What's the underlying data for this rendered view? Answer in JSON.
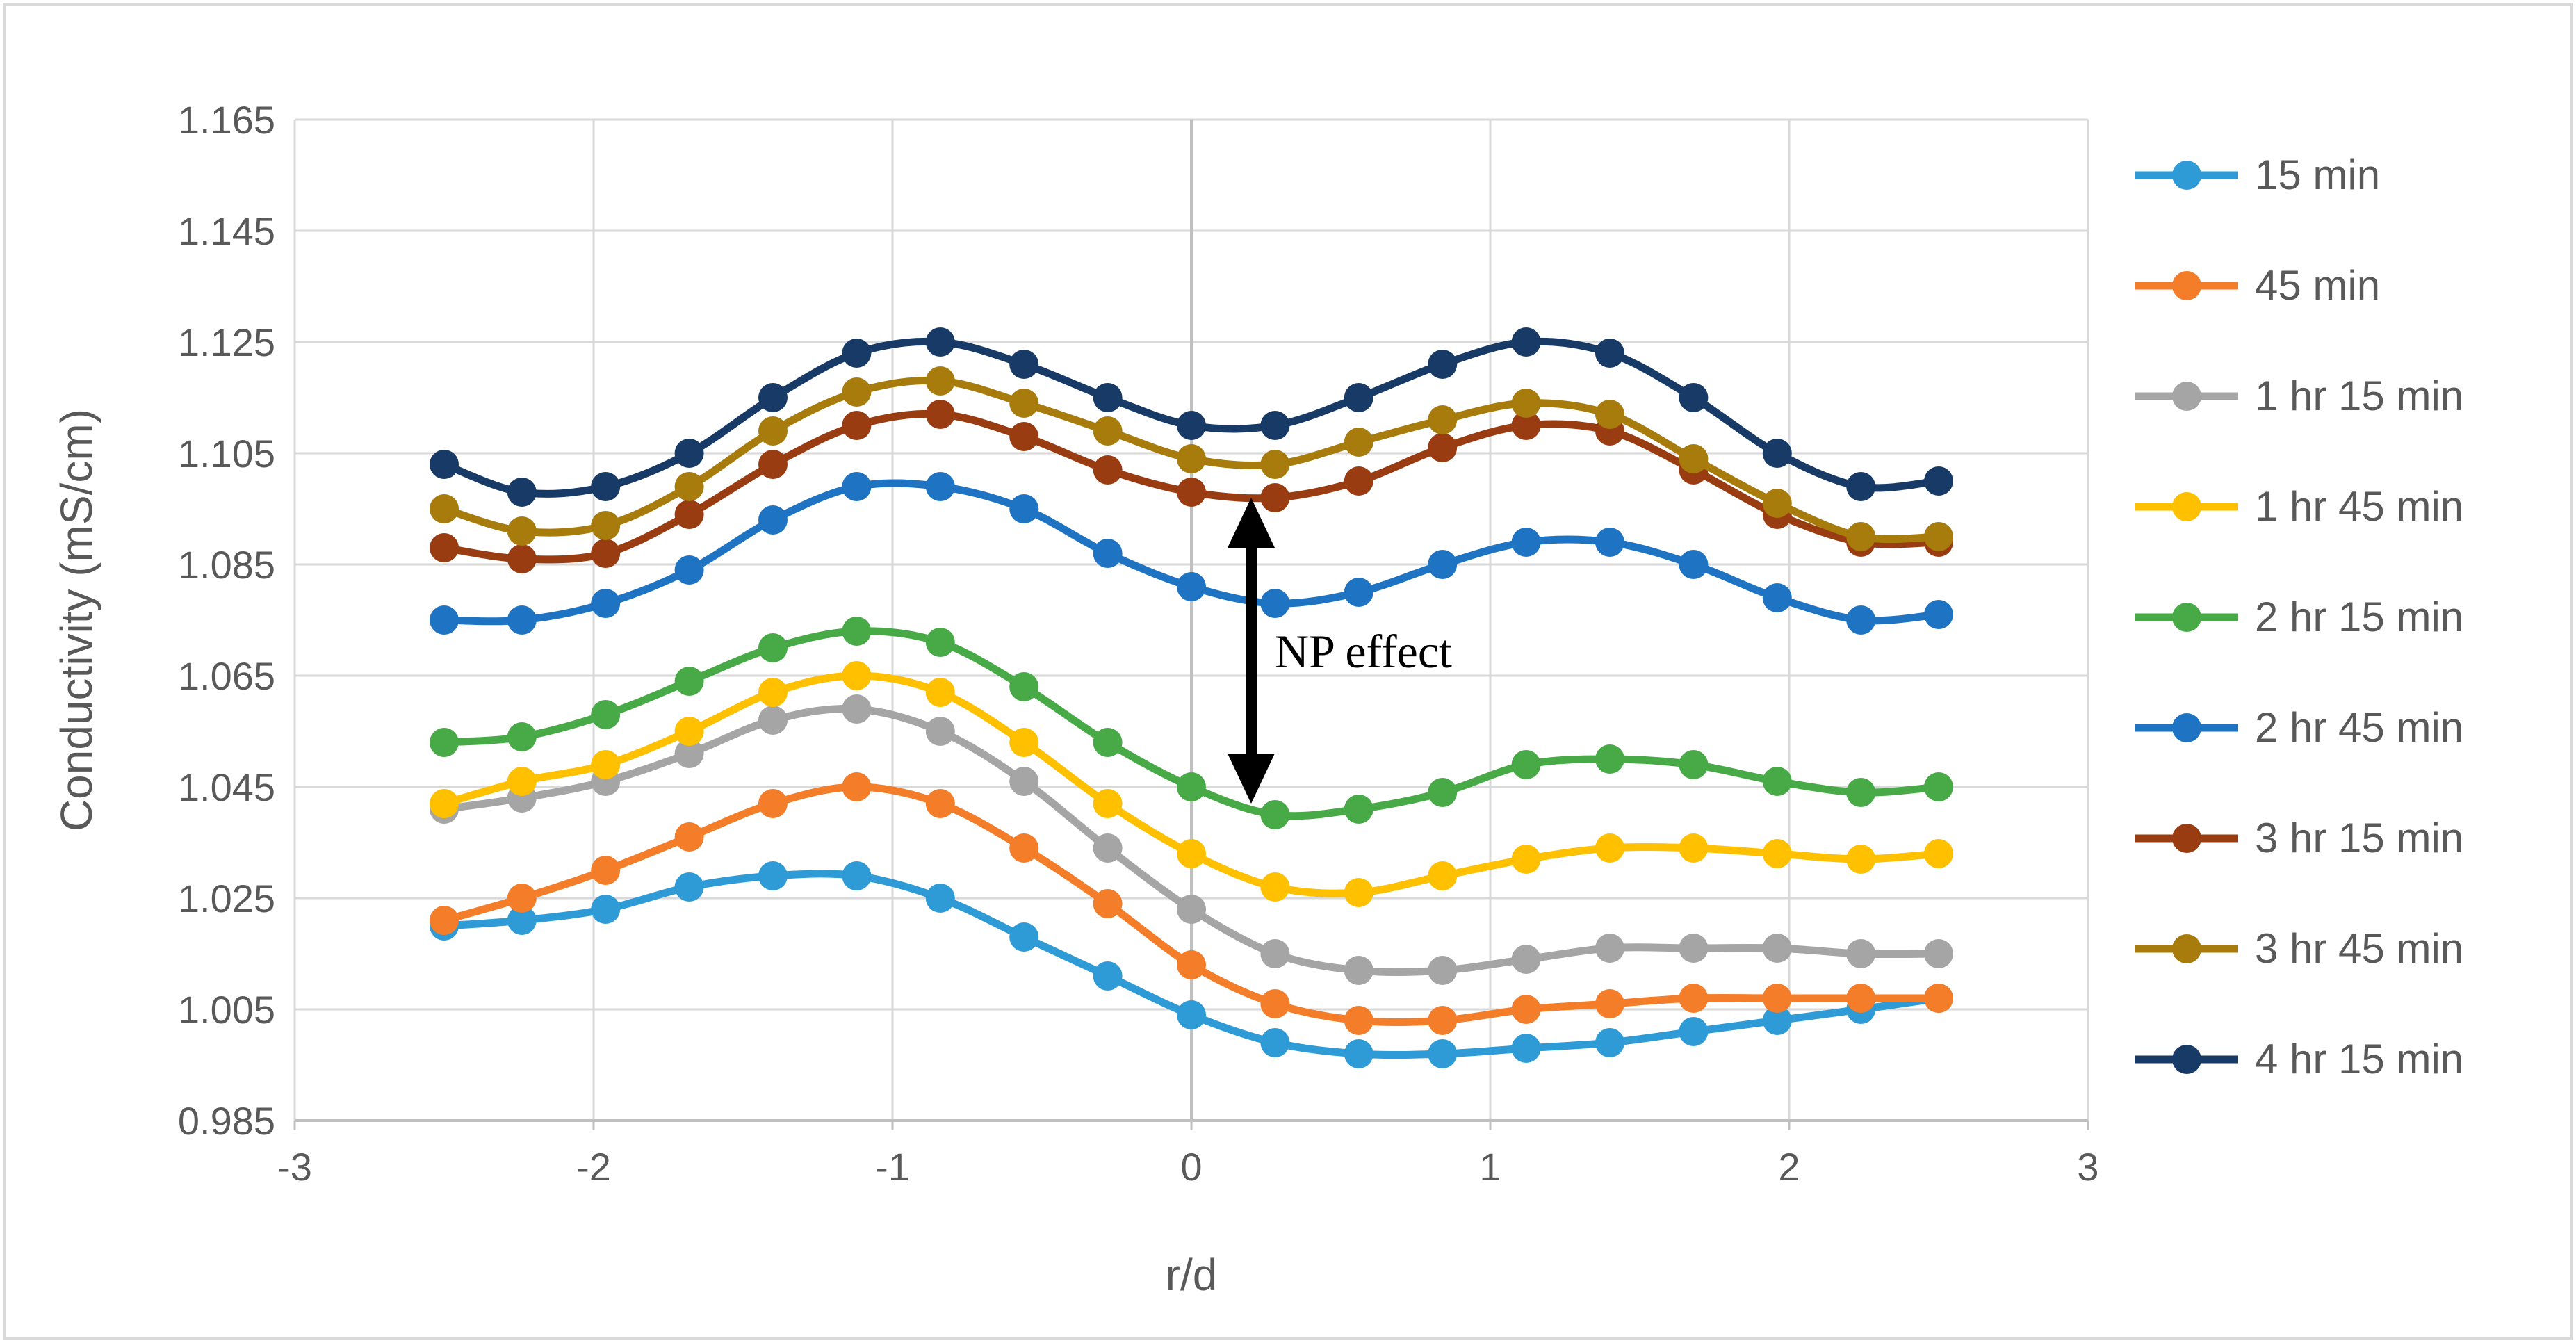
{
  "chart_data": {
    "type": "line",
    "title": "",
    "xlabel": "r/d",
    "ylabel": "Conductivity (mS/cm)",
    "xlim": [
      -3,
      3
    ],
    "ylim": [
      0.985,
      1.165
    ],
    "xticks": [
      -3,
      -2,
      -1,
      0,
      1,
      2,
      3
    ],
    "xtick_labels": [
      "-3",
      "-2",
      "-1",
      "0",
      "1",
      "2",
      "3"
    ],
    "yticks": [
      0.985,
      1.005,
      1.025,
      1.045,
      1.065,
      1.085,
      1.105,
      1.125,
      1.145,
      1.165
    ],
    "ytick_labels": [
      "0.985",
      "1.005",
      "1.025",
      "1.045",
      "1.065",
      "1.085",
      "1.105",
      "1.125",
      "1.145",
      "1.165"
    ],
    "grid": true,
    "legend_position": "right",
    "x": [
      -2.5,
      -2.24,
      -1.96,
      -1.68,
      -1.4,
      -1.12,
      -0.84,
      -0.56,
      -0.28,
      0,
      0.28,
      0.56,
      0.84,
      1.12,
      1.4,
      1.68,
      1.96,
      2.24,
      2.5
    ],
    "series": [
      {
        "name": "15 min",
        "color": "#2E9BD6",
        "values": [
          1.02,
          1.021,
          1.023,
          1.027,
          1.029,
          1.029,
          1.025,
          1.018,
          1.011,
          1.004,
          0.999,
          0.997,
          0.997,
          0.998,
          0.999,
          1.001,
          1.003,
          1.005,
          1.007
        ]
      },
      {
        "name": "45 min",
        "color": "#F47D2A",
        "values": [
          1.021,
          1.025,
          1.03,
          1.036,
          1.042,
          1.045,
          1.042,
          1.034,
          1.024,
          1.013,
          1.006,
          1.003,
          1.003,
          1.005,
          1.006,
          1.007,
          1.007,
          1.007,
          1.007
        ]
      },
      {
        "name": "1 hr 15 min",
        "color": "#A5A5A5",
        "values": [
          1.041,
          1.043,
          1.046,
          1.051,
          1.057,
          1.059,
          1.055,
          1.046,
          1.034,
          1.023,
          1.015,
          1.012,
          1.012,
          1.014,
          1.016,
          1.016,
          1.016,
          1.015,
          1.015
        ]
      },
      {
        "name": "1 hr 45 min",
        "color": "#FFC000",
        "values": [
          1.042,
          1.046,
          1.049,
          1.055,
          1.062,
          1.065,
          1.062,
          1.053,
          1.042,
          1.033,
          1.027,
          1.026,
          1.029,
          1.032,
          1.034,
          1.034,
          1.033,
          1.032,
          1.033
        ]
      },
      {
        "name": "2 hr 15 min",
        "color": "#48AA47",
        "values": [
          1.053,
          1.054,
          1.058,
          1.064,
          1.07,
          1.073,
          1.071,
          1.063,
          1.053,
          1.045,
          1.04,
          1.041,
          1.044,
          1.049,
          1.05,
          1.049,
          1.046,
          1.044,
          1.045
        ]
      },
      {
        "name": "2 hr 45 min",
        "color": "#1E74C3",
        "values": [
          1.075,
          1.075,
          1.078,
          1.084,
          1.093,
          1.099,
          1.099,
          1.095,
          1.087,
          1.081,
          1.078,
          1.08,
          1.085,
          1.089,
          1.089,
          1.085,
          1.079,
          1.075,
          1.076
        ]
      },
      {
        "name": "3 hr 15 min",
        "color": "#9A3C12",
        "values": [
          1.088,
          1.086,
          1.087,
          1.094,
          1.103,
          1.11,
          1.112,
          1.108,
          1.102,
          1.098,
          1.097,
          1.1,
          1.106,
          1.11,
          1.109,
          1.102,
          1.094,
          1.089,
          1.089
        ]
      },
      {
        "name": "3 hr 45 min",
        "color": "#A77B0C",
        "values": [
          1.095,
          1.091,
          1.092,
          1.099,
          1.109,
          1.116,
          1.118,
          1.114,
          1.109,
          1.104,
          1.103,
          1.107,
          1.111,
          1.114,
          1.112,
          1.104,
          1.096,
          1.09,
          1.09
        ]
      },
      {
        "name": "4 hr 15 min",
        "color": "#173A66",
        "values": [
          1.103,
          1.098,
          1.099,
          1.105,
          1.115,
          1.123,
          1.125,
          1.121,
          1.115,
          1.11,
          1.11,
          1.115,
          1.121,
          1.125,
          1.123,
          1.115,
          1.105,
          1.099,
          1.1
        ]
      }
    ],
    "annotation": {
      "text": "NP effect",
      "x": 0.2,
      "y_top": 1.097,
      "y_bottom": 1.042,
      "color": "#000000"
    }
  }
}
